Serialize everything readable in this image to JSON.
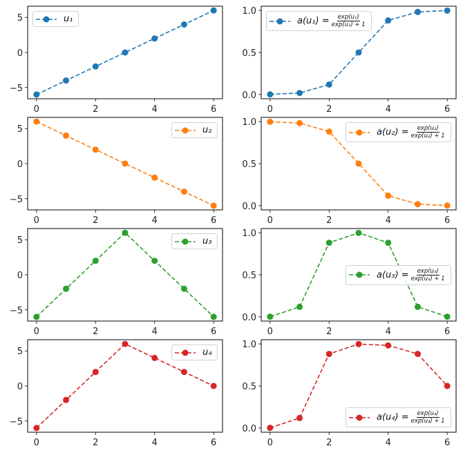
{
  "chart_data": [
    {
      "type": "line",
      "position": "row1-left",
      "series": [
        {
          "name": "u_1",
          "color": "#1f77b4",
          "x": [
            0,
            1,
            2,
            3,
            4,
            5,
            6
          ],
          "y": [
            -6,
            -4,
            -2,
            0,
            2,
            4,
            6
          ]
        }
      ],
      "legend": {
        "text": "u₁",
        "placement": "upper-left"
      },
      "xlim": [
        -0.3,
        6.3
      ],
      "ylim": [
        -6.6,
        6.6
      ],
      "xticks": [
        "0",
        "2",
        "4",
        "6"
      ],
      "yticks": [
        "−5",
        "0",
        "5"
      ],
      "xtick_values": [
        0,
        2,
        4,
        6
      ],
      "ytick_values": [
        -5,
        0,
        5
      ]
    },
    {
      "type": "line",
      "position": "row1-right",
      "series": [
        {
          "name": "a(u_1)",
          "color": "#1f77b4",
          "x": [
            0,
            1,
            2,
            3,
            4,
            5,
            6
          ],
          "y": [
            0.002,
            0.018,
            0.119,
            0.5,
            0.881,
            0.982,
            0.998
          ]
        }
      ],
      "legend": {
        "lhs": "a(u₁) =",
        "num": "exp(u₁)",
        "den": "exp(u₁) + 1",
        "placement": "upper-left"
      },
      "xlim": [
        -0.3,
        6.3
      ],
      "ylim": [
        -0.05,
        1.05
      ],
      "xticks": [
        "0",
        "2",
        "4",
        "6"
      ],
      "yticks": [
        "0.0",
        "0.5",
        "1.0"
      ],
      "xtick_values": [
        0,
        2,
        4,
        6
      ],
      "ytick_values": [
        0,
        0.5,
        1
      ]
    },
    {
      "type": "line",
      "position": "row2-left",
      "series": [
        {
          "name": "u_2",
          "color": "#ff7f0e",
          "x": [
            0,
            1,
            2,
            3,
            4,
            5,
            6
          ],
          "y": [
            6,
            4,
            2,
            0,
            -2,
            -4,
            -6
          ]
        }
      ],
      "legend": {
        "text": "u₂",
        "placement": "upper-right"
      },
      "xlim": [
        -0.3,
        6.3
      ],
      "ylim": [
        -6.6,
        6.6
      ],
      "xticks": [
        "0",
        "2",
        "4",
        "6"
      ],
      "yticks": [
        "−5",
        "0",
        "5"
      ],
      "xtick_values": [
        0,
        2,
        4,
        6
      ],
      "ytick_values": [
        -5,
        0,
        5
      ]
    },
    {
      "type": "line",
      "position": "row2-right",
      "series": [
        {
          "name": "a(u_2)",
          "color": "#ff7f0e",
          "x": [
            0,
            1,
            2,
            3,
            4,
            5,
            6
          ],
          "y": [
            0.998,
            0.982,
            0.881,
            0.5,
            0.119,
            0.018,
            0.002
          ]
        }
      ],
      "legend": {
        "lhs": "a(u₂) =",
        "num": "exp(u₂)",
        "den": "exp(u₂) + 1",
        "placement": "upper-right"
      },
      "xlim": [
        -0.3,
        6.3
      ],
      "ylim": [
        -0.05,
        1.05
      ],
      "xticks": [
        "0",
        "2",
        "4",
        "6"
      ],
      "yticks": [
        "0.0",
        "0.5",
        "1.0"
      ],
      "xtick_values": [
        0,
        2,
        4,
        6
      ],
      "ytick_values": [
        0,
        0.5,
        1
      ]
    },
    {
      "type": "line",
      "position": "row3-left",
      "series": [
        {
          "name": "u_3",
          "color": "#2ca02c",
          "x": [
            0,
            1,
            2,
            3,
            4,
            5,
            6
          ],
          "y": [
            -6,
            -2,
            2,
            6,
            2,
            -2,
            -6
          ]
        }
      ],
      "legend": {
        "text": "u₃",
        "placement": "upper-right"
      },
      "xlim": [
        -0.3,
        6.3
      ],
      "ylim": [
        -6.6,
        6.6
      ],
      "xticks": [
        "0",
        "2",
        "4",
        "6"
      ],
      "yticks": [
        "−5",
        "0",
        "5"
      ],
      "xtick_values": [
        0,
        2,
        4,
        6
      ],
      "ytick_values": [
        -5,
        0,
        5
      ]
    },
    {
      "type": "line",
      "position": "row3-right",
      "series": [
        {
          "name": "a(u_3)",
          "color": "#2ca02c",
          "x": [
            0,
            1,
            2,
            3,
            4,
            5,
            6
          ],
          "y": [
            0.002,
            0.119,
            0.881,
            0.998,
            0.881,
            0.119,
            0.002
          ]
        }
      ],
      "legend": {
        "lhs": "a(u₃) =",
        "num": "exp(u₃)",
        "den": "exp(u₃) + 1",
        "placement": "center-right"
      },
      "xlim": [
        -0.3,
        6.3
      ],
      "ylim": [
        -0.05,
        1.05
      ],
      "xticks": [
        "0",
        "2",
        "4",
        "6"
      ],
      "yticks": [
        "0.0",
        "0.5",
        "1.0"
      ],
      "xtick_values": [
        0,
        2,
        4,
        6
      ],
      "ytick_values": [
        0,
        0.5,
        1
      ]
    },
    {
      "type": "line",
      "position": "row4-left",
      "series": [
        {
          "name": "u_4",
          "color": "#d62728",
          "x": [
            0,
            1,
            2,
            3,
            4,
            5,
            6
          ],
          "y": [
            -6,
            -2,
            2,
            6,
            4,
            2,
            0
          ]
        }
      ],
      "legend": {
        "text": "u₄",
        "placement": "upper-right"
      },
      "xlim": [
        -0.3,
        6.3
      ],
      "ylim": [
        -6.6,
        6.6
      ],
      "xticks": [
        "0",
        "2",
        "4",
        "6"
      ],
      "yticks": [
        "−5",
        "0",
        "5"
      ],
      "xtick_values": [
        0,
        2,
        4,
        6
      ],
      "ytick_values": [
        -5,
        0,
        5
      ]
    },
    {
      "type": "line",
      "position": "row4-right",
      "series": [
        {
          "name": "a(u_4)",
          "color": "#d62728",
          "x": [
            0,
            1,
            2,
            3,
            4,
            5,
            6
          ],
          "y": [
            0.002,
            0.119,
            0.881,
            0.998,
            0.982,
            0.881,
            0.5
          ]
        }
      ],
      "legend": {
        "lhs": "a(u₄) =",
        "num": "exp(u₄)",
        "den": "exp(u₄) + 1",
        "placement": "lower-right"
      },
      "xlim": [
        -0.3,
        6.3
      ],
      "ylim": [
        -0.05,
        1.05
      ],
      "xticks": [
        "0",
        "2",
        "4",
        "6"
      ],
      "yticks": [
        "0.0",
        "0.5",
        "1.0"
      ],
      "xtick_values": [
        0,
        2,
        4,
        6
      ],
      "ytick_values": [
        0,
        0.5,
        1
      ]
    }
  ]
}
